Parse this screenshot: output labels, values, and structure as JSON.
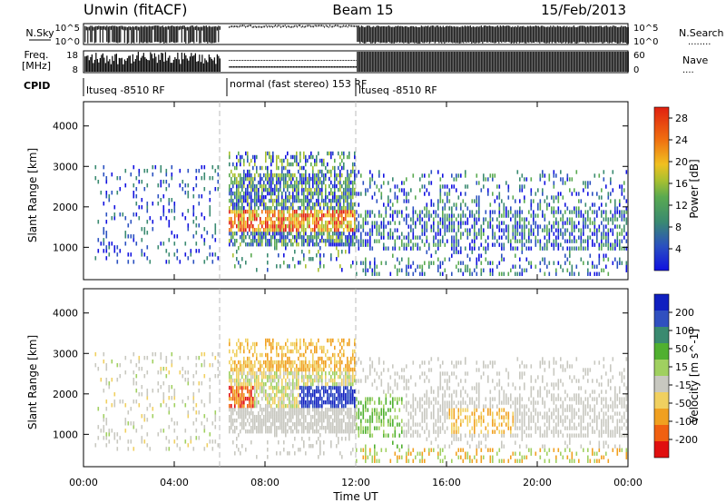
{
  "header": {
    "station": "Unwin (fitACF)",
    "beam": "Beam 15",
    "date": "15/Feb/2013"
  },
  "summary_panels": {
    "nsky": {
      "label": "N.Sky",
      "ticks": [
        "10^5",
        "10^0"
      ]
    },
    "freq": {
      "label_line1": "Freq.",
      "label_line2": "[MHz]",
      "ticks": [
        "18",
        "8"
      ]
    },
    "right_ticks_top": [
      "10^5",
      "10^0"
    ],
    "right_ticks_bottom": [
      "60",
      "0"
    ],
    "nsearch": {
      "label": "N.Search",
      "dots": "........"
    },
    "nave": {
      "label": "Nave",
      "dots": "...."
    },
    "cpid": {
      "label": "CPID",
      "modes": [
        "ltuseq -8510 RF",
        "normal (fast stereo) 153 RF",
        "ltuseq -8510 RF"
      ]
    }
  },
  "chart_data": [
    {
      "type": "heatmap",
      "name": "power",
      "ylabel": "Slant Range [km]",
      "yticks": [
        1000,
        2000,
        3000,
        4000
      ],
      "ylim": [
        200,
        4600
      ],
      "xlim_hours": [
        0,
        24
      ],
      "colorbar": {
        "label": "Power [dB]",
        "ticks": [
          4,
          8,
          12,
          16,
          20,
          24,
          28
        ],
        "range": [
          0,
          30
        ]
      },
      "colorscale": [
        "#1010e0",
        "#2a50c0",
        "#3a8a70",
        "#5aaa50",
        "#a8c030",
        "#f0c020",
        "#f07010",
        "#e02010"
      ],
      "features": [
        {
          "hours": [
            0.5,
            6.0
          ],
          "range_km": [
            600,
            3000
          ],
          "level": "sparse",
          "power_db": [
            4,
            14
          ]
        },
        {
          "hours": [
            6.4,
            12.0
          ],
          "range_km": [
            1000,
            3300
          ],
          "level": "strong",
          "power_db": [
            8,
            28
          ]
        },
        {
          "hours": [
            12.0,
            24.0
          ],
          "range_km": [
            400,
            2800
          ],
          "level": "medium",
          "power_db": [
            4,
            16
          ]
        }
      ]
    },
    {
      "type": "heatmap",
      "name": "velocity",
      "ylabel": "Slant Range [km]",
      "yticks": [
        1000,
        2000,
        3000,
        4000
      ],
      "ylim": [
        200,
        4600
      ],
      "xlim_hours": [
        0,
        24
      ],
      "colorbar": {
        "label": "Velocity [m s^-1]",
        "ticks": [
          200,
          100,
          50,
          15,
          -15,
          -50,
          -100,
          -200
        ],
        "range": [
          -250,
          250
        ]
      },
      "colorscale": [
        "#e01010",
        "#f06010",
        "#f0a020",
        "#f0d060",
        "#c8c8c0",
        "#a0d060",
        "#50b030",
        "#3a8a70",
        "#3050c0",
        "#1020c0"
      ],
      "features": [
        {
          "hours": [
            0.5,
            6.0
          ],
          "range_km": [
            600,
            3000
          ],
          "velocity_ms": [
            -15,
            15
          ]
        },
        {
          "hours": [
            6.4,
            12.0
          ],
          "range_km": [
            1000,
            3300
          ],
          "velocity_ms": [
            -200,
            200
          ]
        },
        {
          "hours": [
            12.0,
            24.0
          ],
          "range_km": [
            300,
            2800
          ],
          "velocity_ms": [
            -100,
            50
          ]
        }
      ]
    }
  ],
  "xaxis": {
    "label": "Time UT",
    "ticks": [
      "00:00",
      "04:00",
      "08:00",
      "12:00",
      "16:00",
      "20:00",
      "00:00"
    ]
  }
}
